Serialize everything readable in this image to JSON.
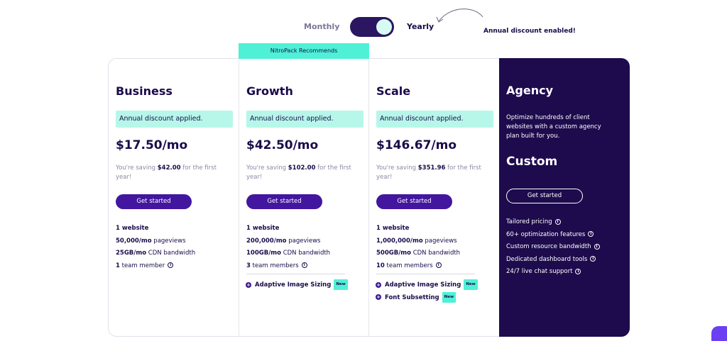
{
  "billing": {
    "monthly_label": "Monthly",
    "yearly_label": "Yearly",
    "selected": "Yearly",
    "discount_note": "Annual discount enabled!"
  },
  "recommend_label": "NitroPack Recommends",
  "plans": [
    {
      "name": "Business",
      "discount_chip": "Annual discount applied.",
      "price": "$17.50/mo",
      "saving_prefix": "You're saving",
      "saving_amount": "$42.00",
      "saving_suffix": "for the first year!",
      "cta": "Get started",
      "features": [
        {
          "bold": "1 website",
          "rest": ""
        },
        {
          "bold": "50,000/mo",
          "rest": " pageviews"
        },
        {
          "bold": "25GB/mo",
          "rest": " CDN bandwidth"
        },
        {
          "bold": "1",
          "rest": " team member"
        }
      ],
      "addons": []
    },
    {
      "name": "Growth",
      "discount_chip": "Annual discount applied.",
      "price": "$42.50/mo",
      "saving_prefix": "You're saving",
      "saving_amount": "$102.00",
      "saving_suffix": "for the first year!",
      "cta": "Get started",
      "features": [
        {
          "bold": "1 website",
          "rest": ""
        },
        {
          "bold": "200,000/mo",
          "rest": " pageviews"
        },
        {
          "bold": "100GB/mo",
          "rest": " CDN bandwidth"
        },
        {
          "bold": "3",
          "rest": " team members"
        }
      ],
      "addons": [
        {
          "label": "Adaptive Image Sizing",
          "badge": "New"
        }
      ]
    },
    {
      "name": "Scale",
      "discount_chip": "Annual discount applied.",
      "price": "$146.67/mo",
      "saving_prefix": "You're saving",
      "saving_amount": "$351.96",
      "saving_suffix": "for the first year!",
      "cta": "Get started",
      "features": [
        {
          "bold": "1 website",
          "rest": ""
        },
        {
          "bold": "1,000,000/mo",
          "rest": " pageviews"
        },
        {
          "bold": "500GB/mo",
          "rest": " CDN bandwidth"
        },
        {
          "bold": "10",
          "rest": " team members"
        }
      ],
      "addons": [
        {
          "label": "Adaptive Image Sizing",
          "badge": "New"
        },
        {
          "label": "Font Subsetting",
          "badge": "New"
        }
      ]
    }
  ],
  "agency": {
    "name": "Agency",
    "description": "Optimize hundreds of client websites with a custom agency plan built for you.",
    "price": "Custom",
    "cta": "Get started",
    "features": [
      "Tailored pricing",
      "60+ optimization features",
      "Custom resource bandwidth",
      "Dedicated dashboard tools",
      "24/7 live chat support"
    ]
  },
  "colors": {
    "brand_dark": "#1d0b4d",
    "button_purple": "#42169f",
    "accent_teal": "#4ef1d6",
    "chip_teal": "#b6f7ea"
  },
  "icons": {
    "info": "info-icon",
    "addon": "plus-circle-icon",
    "chat": "chat-icon"
  }
}
